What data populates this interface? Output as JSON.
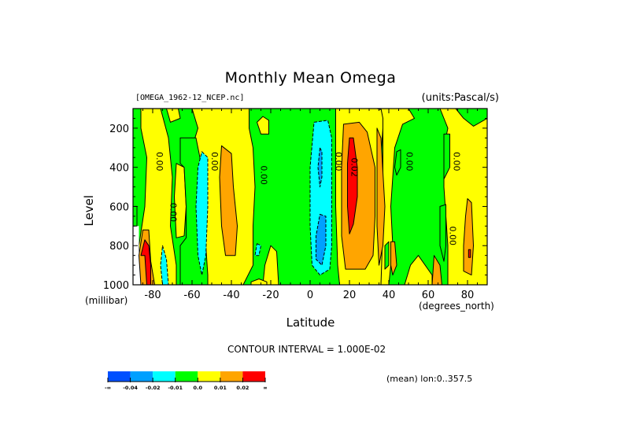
{
  "chart_data": {
    "type": "heatmap",
    "subtype": "filled-contour",
    "title": "Monthly Mean Omega",
    "file_label": "[OMEGA_1962-12_NCEP.nc]",
    "units_label": "(units:Pascal/s)",
    "xlabel": "Latitude",
    "x_unit_label": "(degrees_north)",
    "ylabel": "Level",
    "y_unit_label": "(millibar)",
    "xlim": [
      -90,
      90
    ],
    "ylim": [
      1000,
      100
    ],
    "y_reversed": true,
    "x_ticks": [
      -80,
      -60,
      -40,
      -20,
      0,
      20,
      40,
      60,
      80
    ],
    "x_tick_labels": [
      "-80",
      "-60",
      "-40",
      "-20",
      "0",
      "20",
      "40",
      "60",
      "80"
    ],
    "y_ticks": [
      200,
      400,
      600,
      800,
      1000
    ],
    "y_tick_labels": [
      "200",
      "400",
      "600",
      "800",
      "1000"
    ],
    "x_minor_step": 5,
    "y_minor_step": 50,
    "contour_interval_text": "CONTOUR INTERVAL = 1.000E-02",
    "annotation": "(mean) lon:0..357.5",
    "colorbar": {
      "levels": [
        "-∞",
        "-0.04",
        "-0.02",
        "-0.01",
        "0.0",
        "0.01",
        "0.02",
        "∞"
      ],
      "colors": [
        "#0050ff",
        "#00a0ff",
        "#00ffff",
        "#00ff00",
        "#ffff00",
        "#ffa500",
        "#ff0000"
      ]
    },
    "colors": {
      "blue": "#00a0ff",
      "cyan": "#00ffff",
      "green": "#00ff00",
      "yellow": "#ffff00",
      "orange": "#ffa500",
      "red": "#ff0000",
      "missing": "#ffffff"
    },
    "background_band": "green",
    "regions": [
      {
        "band": "yellow",
        "dashed": false,
        "points": [
          [
            -86,
            100
          ],
          [
            -76,
            100
          ],
          [
            -72,
            250
          ],
          [
            -70,
            450
          ],
          [
            -71,
            700
          ],
          [
            -68,
            900
          ],
          [
            -68,
            1000
          ],
          [
            -87,
            1000
          ],
          [
            -87,
            800
          ],
          [
            -84,
            600
          ],
          [
            -83,
            350
          ],
          [
            -86,
            200
          ]
        ]
      },
      {
        "band": "yellow",
        "dashed": false,
        "points": [
          [
            -73,
            100
          ],
          [
            -67,
            100
          ],
          [
            -66,
            150
          ],
          [
            -71,
            170
          ]
        ]
      },
      {
        "band": "yellow",
        "dashed": false,
        "points": [
          [
            -68,
            380
          ],
          [
            -64,
            400
          ],
          [
            -63,
            600
          ],
          [
            -64,
            750
          ],
          [
            -68,
            760
          ],
          [
            -69,
            550
          ]
        ]
      },
      {
        "band": "missing",
        "dashed": false,
        "points": [
          [
            -90,
            600
          ],
          [
            -88,
            600
          ],
          [
            -88,
            700
          ],
          [
            -87,
            700
          ],
          [
            -87,
            850
          ],
          [
            -84,
            850
          ],
          [
            -84,
            1000
          ],
          [
            -90,
            1000
          ]
        ]
      },
      {
        "band": "green",
        "dashed": false,
        "points": [
          [
            -90,
            600
          ],
          [
            -88,
            600
          ],
          [
            -88,
            700
          ],
          [
            -90,
            700
          ]
        ]
      },
      {
        "band": "orange",
        "dashed": false,
        "points": [
          [
            -85,
            720
          ],
          [
            -82,
            720
          ],
          [
            -81,
            880
          ],
          [
            -79,
            1000
          ],
          [
            -86,
            1000
          ],
          [
            -87,
            850
          ]
        ]
      },
      {
        "band": "red",
        "dashed": false,
        "points": [
          [
            -84,
            770
          ],
          [
            -82,
            800
          ],
          [
            -81,
            900
          ],
          [
            -81,
            1000
          ],
          [
            -83,
            1000
          ],
          [
            -84,
            850
          ],
          [
            -86,
            850
          ]
        ]
      },
      {
        "band": "cyan",
        "dashed": true,
        "points": [
          [
            -75,
            800
          ],
          [
            -73,
            870
          ],
          [
            -72,
            1000
          ],
          [
            -75,
            1000
          ],
          [
            -76,
            900
          ]
        ]
      },
      {
        "band": "yellow",
        "dashed": false,
        "points": [
          [
            -60,
            100
          ],
          [
            -40,
            100
          ],
          [
            -31,
            100
          ],
          [
            -31,
            200
          ],
          [
            -29,
            300
          ],
          [
            -28,
            500
          ],
          [
            -29,
            700
          ],
          [
            -29,
            900
          ],
          [
            -34,
            1000
          ],
          [
            -55,
            1000
          ],
          [
            -57,
            900
          ],
          [
            -59,
            700
          ],
          [
            -60,
            500
          ],
          [
            -60,
            300
          ],
          [
            -57,
            200
          ]
        ]
      },
      {
        "band": "orange",
        "dashed": false,
        "points": [
          [
            -45,
            290
          ],
          [
            -40,
            330
          ],
          [
            -39,
            500
          ],
          [
            -37,
            700
          ],
          [
            -38,
            850
          ],
          [
            -43,
            850
          ],
          [
            -45,
            700
          ],
          [
            -46,
            450
          ]
        ]
      },
      {
        "band": "green",
        "dashed": false,
        "points": [
          [
            -66,
            250
          ],
          [
            -58,
            250
          ],
          [
            -56,
            350
          ],
          [
            -55,
            500
          ],
          [
            -53,
            800
          ],
          [
            -52,
            950
          ],
          [
            -52,
            1000
          ],
          [
            -66,
            1000
          ],
          [
            -66,
            800
          ],
          [
            -63,
            760
          ],
          [
            -63,
            600
          ],
          [
            -64,
            400
          ],
          [
            -66,
            380
          ]
        ]
      },
      {
        "band": "cyan",
        "dashed": true,
        "points": [
          [
            -55,
            320
          ],
          [
            -52,
            350
          ],
          [
            -52,
            600
          ],
          [
            -53,
            850
          ],
          [
            -55,
            950
          ],
          [
            -57,
            850
          ],
          [
            -58,
            600
          ],
          [
            -57,
            400
          ]
        ]
      },
      {
        "band": "yellow",
        "dashed": false,
        "points": [
          [
            -24,
            140
          ],
          [
            -21,
            160
          ],
          [
            -21,
            230
          ],
          [
            -25,
            230
          ],
          [
            -27,
            170
          ]
        ]
      },
      {
        "band": "yellow",
        "dashed": false,
        "points": [
          [
            -20,
            800
          ],
          [
            -17,
            830
          ],
          [
            -16,
            1000
          ],
          [
            -24,
            1000
          ],
          [
            -23,
            900
          ]
        ]
      },
      {
        "band": "cyan",
        "dashed": true,
        "points": [
          [
            -27,
            790
          ],
          [
            -25,
            800
          ],
          [
            -26,
            850
          ],
          [
            -28,
            850
          ]
        ]
      },
      {
        "band": "yellow",
        "dashed": false,
        "points": [
          [
            -30,
            985
          ],
          [
            -26,
            970
          ],
          [
            -22,
            985
          ],
          [
            -22,
            1000
          ],
          [
            -30,
            1000
          ]
        ]
      },
      {
        "band": "yellow",
        "dashed": false,
        "points": [
          [
            13,
            100
          ],
          [
            34,
            100
          ],
          [
            38,
            110
          ],
          [
            37,
            200
          ],
          [
            36,
            350
          ],
          [
            37,
            650
          ],
          [
            37,
            900
          ],
          [
            36,
            1000
          ],
          [
            15,
            1000
          ],
          [
            14,
            900
          ],
          [
            13,
            600
          ],
          [
            13,
            300
          ]
        ]
      },
      {
        "band": "orange",
        "dashed": false,
        "points": [
          [
            17,
            180
          ],
          [
            25,
            170
          ],
          [
            29,
            220
          ],
          [
            33,
            400
          ],
          [
            33,
            650
          ],
          [
            32,
            850
          ],
          [
            28,
            920
          ],
          [
            18,
            920
          ],
          [
            16,
            750
          ],
          [
            16,
            400
          ]
        ]
      },
      {
        "band": "red",
        "dashed": false,
        "points": [
          [
            20,
            250
          ],
          [
            22,
            250
          ],
          [
            24,
            400
          ],
          [
            24,
            550
          ],
          [
            22,
            690
          ],
          [
            20,
            740
          ],
          [
            19,
            600
          ],
          [
            19,
            380
          ]
        ]
      },
      {
        "band": "cyan",
        "dashed": true,
        "points": [
          [
            2,
            170
          ],
          [
            9,
            160
          ],
          [
            11,
            250
          ],
          [
            11,
            500
          ],
          [
            11,
            800
          ],
          [
            10,
            920
          ],
          [
            5,
            950
          ],
          [
            1,
            900
          ],
          [
            0,
            700
          ],
          [
            0,
            400
          ]
        ]
      },
      {
        "band": "blue",
        "dashed": true,
        "points": [
          [
            5,
            300
          ],
          [
            6,
            320
          ],
          [
            6,
            450
          ],
          [
            5,
            500
          ],
          [
            4,
            400
          ]
        ]
      },
      {
        "band": "blue",
        "dashed": true,
        "points": [
          [
            5,
            640
          ],
          [
            8,
            650
          ],
          [
            8,
            800
          ],
          [
            6,
            900
          ],
          [
            3,
            870
          ],
          [
            3,
            750
          ]
        ]
      },
      {
        "band": "yellow",
        "dashed": false,
        "points": [
          [
            36,
            100
          ],
          [
            50,
            100
          ],
          [
            53,
            150
          ],
          [
            47,
            180
          ],
          [
            43,
            300
          ],
          [
            41,
            600
          ],
          [
            42,
            800
          ],
          [
            40,
            1000
          ],
          [
            36,
            1000
          ],
          [
            37,
            700
          ],
          [
            37,
            300
          ],
          [
            37,
            150
          ]
        ]
      },
      {
        "band": "green",
        "dashed": false,
        "points": [
          [
            44,
            320
          ],
          [
            46,
            310
          ],
          [
            46,
            400
          ],
          [
            44,
            440
          ],
          [
            43,
            400
          ]
        ]
      },
      {
        "band": "yellow",
        "dashed": false,
        "points": [
          [
            48,
            1000
          ],
          [
            51,
            900
          ],
          [
            55,
            850
          ],
          [
            62,
            950
          ],
          [
            62,
            1000
          ]
        ]
      },
      {
        "band": "yellow",
        "dashed": false,
        "points": [
          [
            66,
            100
          ],
          [
            74,
            100
          ],
          [
            78,
            150
          ],
          [
            83,
            190
          ],
          [
            90,
            150
          ],
          [
            90,
            1000
          ],
          [
            70,
            1000
          ],
          [
            70,
            800
          ],
          [
            68,
            500
          ],
          [
            68,
            300
          ],
          [
            70,
            200
          ]
        ]
      },
      {
        "band": "green",
        "dashed": false,
        "points": [
          [
            68,
            230
          ],
          [
            71,
            230
          ],
          [
            71,
            400
          ],
          [
            68,
            460
          ]
        ]
      },
      {
        "band": "green",
        "dashed": false,
        "points": [
          [
            66,
            600
          ],
          [
            69,
            590
          ],
          [
            69,
            800
          ],
          [
            68,
            880
          ],
          [
            66,
            800
          ]
        ]
      },
      {
        "band": "orange",
        "dashed": false,
        "points": [
          [
            80,
            560
          ],
          [
            82,
            580
          ],
          [
            83,
            800
          ],
          [
            82,
            950
          ],
          [
            78,
            930
          ],
          [
            78,
            800
          ],
          [
            79,
            650
          ]
        ]
      },
      {
        "band": "red",
        "dashed": false,
        "points": [
          [
            80.5,
            820
          ],
          [
            81.5,
            820
          ],
          [
            81.5,
            860
          ],
          [
            80.5,
            860
          ]
        ]
      },
      {
        "band": "orange",
        "dashed": false,
        "points": [
          [
            63,
            850
          ],
          [
            66,
            900
          ],
          [
            67,
            1000
          ],
          [
            62,
            1000
          ]
        ]
      },
      {
        "band": "orange",
        "dashed": false,
        "points": [
          [
            34,
            200
          ],
          [
            36,
            250
          ],
          [
            38,
            600
          ],
          [
            37,
            800
          ],
          [
            35,
            900
          ],
          [
            34,
            700
          ],
          [
            34,
            400
          ]
        ]
      },
      {
        "band": "green",
        "dashed": false,
        "points": [
          [
            38,
            800
          ],
          [
            40,
            780
          ],
          [
            40,
            900
          ],
          [
            38,
            920
          ]
        ]
      },
      {
        "band": "orange",
        "dashed": false,
        "points": [
          [
            41,
            780
          ],
          [
            43,
            780
          ],
          [
            44,
            900
          ],
          [
            42,
            950
          ],
          [
            41,
            900
          ]
        ]
      }
    ],
    "contour_labels": [
      {
        "text": "0.00",
        "x": -78,
        "y": 370
      },
      {
        "text": "0.00",
        "x": -71,
        "y": 630
      },
      {
        "text": "0.00",
        "x": -50,
        "y": 370
      },
      {
        "text": "0.00",
        "x": -25,
        "y": 440
      },
      {
        "text": "0.00",
        "x": 13,
        "y": 370
      },
      {
        "text": "0.02",
        "x": 21,
        "y": 400
      },
      {
        "text": "0.00",
        "x": 49,
        "y": 370
      },
      {
        "text": "0.00",
        "x": 73,
        "y": 370
      },
      {
        "text": "0.00",
        "x": 71,
        "y": 750
      }
    ]
  }
}
